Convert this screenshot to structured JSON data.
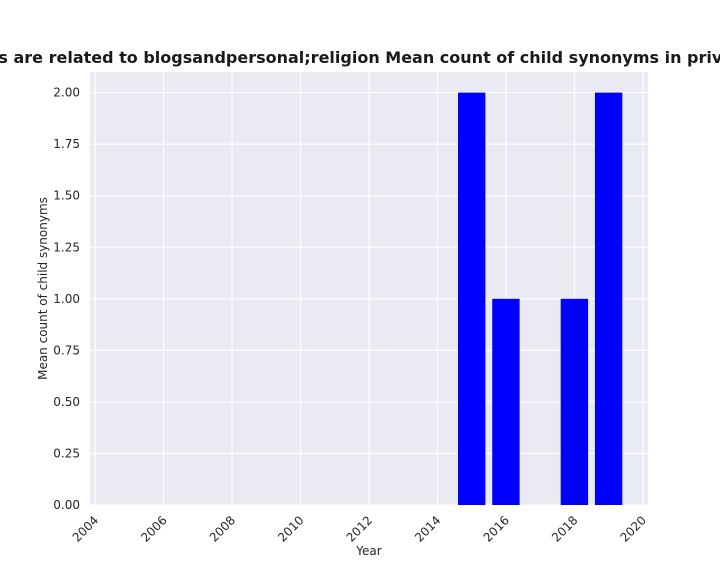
{
  "chart_data": {
    "type": "bar",
    "title": "Categories are related to blogsandpersonal;religion Mean count of child synonyms in privacy policies",
    "xlabel": "Year",
    "ylabel": "Mean count of child synonyms",
    "x": [
      2015,
      2016,
      2018,
      2019
    ],
    "values": [
      2.0,
      1.0,
      1.0,
      2.0
    ],
    "xlim": [
      2003.85,
      2020.15
    ],
    "ylim": [
      0,
      2.1
    ],
    "xticks": [
      "2004",
      "2006",
      "2008",
      "2010",
      "2012",
      "2014",
      "2016",
      "2018",
      "2020"
    ],
    "yticks": [
      "0.00",
      "0.25",
      "0.50",
      "0.75",
      "1.00",
      "1.25",
      "1.50",
      "1.75",
      "2.00"
    ],
    "bar_color": "#0000ff",
    "background_color": "#eaeaf2",
    "grid": true,
    "legend": "none"
  }
}
